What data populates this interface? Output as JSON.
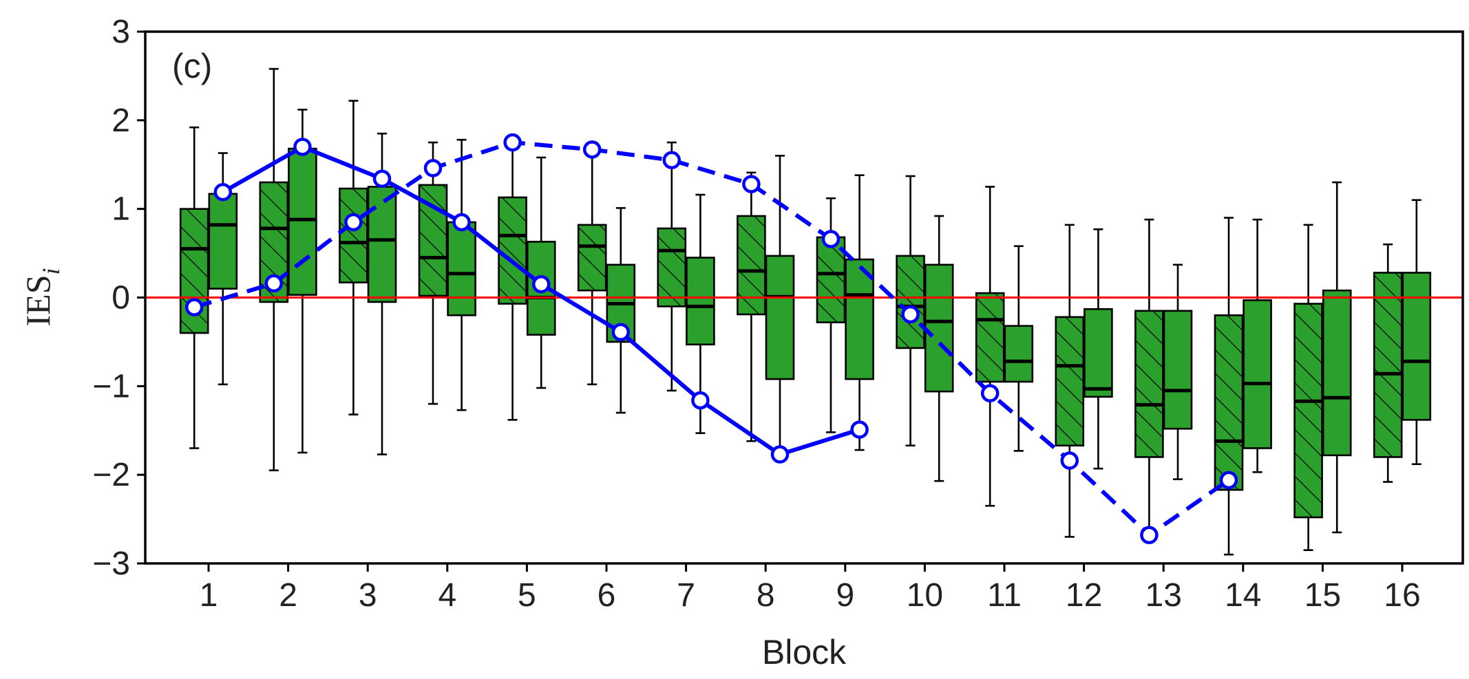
{
  "chart_data": {
    "type": "box",
    "panel_label": "(c)",
    "xlabel": "Block",
    "ylabel": "IES",
    "ylabel_subscript": "i",
    "ylim": [
      -3,
      3
    ],
    "yticks": [
      3,
      2,
      1,
      0,
      -1,
      -2,
      -3
    ],
    "ytick_labels": [
      "3",
      "2",
      "1",
      "0",
      "−1",
      "−2",
      "−3"
    ],
    "categories": [
      "1",
      "2",
      "3",
      "4",
      "5",
      "6",
      "7",
      "8",
      "9",
      "10",
      "11",
      "12",
      "13",
      "14",
      "15",
      "16"
    ],
    "reference_line": {
      "y": 0,
      "color": "#ff0000"
    },
    "colors": {
      "box_fill": "#2ca02c",
      "box_edge": "#000000",
      "points": "#0000ff"
    },
    "box_groups": [
      {
        "name": "hatched",
        "hatch": true,
        "offset": -0.18,
        "boxes": [
          {
            "whislo": -1.7,
            "q1": -0.4,
            "med": 0.55,
            "q3": 1.0,
            "whishi": 1.92
          },
          {
            "whislo": -1.95,
            "q1": -0.05,
            "med": 0.78,
            "q3": 1.3,
            "whishi": 2.58
          },
          {
            "whislo": -1.32,
            "q1": 0.17,
            "med": 0.62,
            "q3": 1.23,
            "whishi": 2.22
          },
          {
            "whislo": -1.2,
            "q1": 0.02,
            "med": 0.45,
            "q3": 1.27,
            "whishi": 1.75
          },
          {
            "whislo": -1.38,
            "q1": -0.07,
            "med": 0.7,
            "q3": 1.13,
            "whishi": 1.75
          },
          {
            "whislo": -0.98,
            "q1": 0.08,
            "med": 0.58,
            "q3": 0.82,
            "whishi": 1.72
          },
          {
            "whislo": -1.05,
            "q1": -0.1,
            "med": 0.53,
            "q3": 0.78,
            "whishi": 1.75
          },
          {
            "whislo": -1.62,
            "q1": -0.19,
            "med": 0.3,
            "q3": 0.92,
            "whishi": 1.41
          },
          {
            "whislo": -1.52,
            "q1": -0.28,
            "med": 0.27,
            "q3": 0.68,
            "whishi": 1.12
          },
          {
            "whislo": -1.67,
            "q1": -0.57,
            "med": -0.1,
            "q3": 0.47,
            "whishi": 1.37
          },
          {
            "whislo": -2.35,
            "q1": -0.95,
            "med": -0.25,
            "q3": 0.05,
            "whishi": 1.25
          },
          {
            "whislo": -2.7,
            "q1": -1.67,
            "med": -0.77,
            "q3": -0.22,
            "whishi": 0.82
          },
          {
            "whislo": -2.6,
            "q1": -1.8,
            "med": -1.21,
            "q3": -0.15,
            "whishi": 0.88
          },
          {
            "whislo": -2.9,
            "q1": -2.17,
            "med": -1.62,
            "q3": -0.2,
            "whishi": 0.9
          },
          {
            "whislo": -2.85,
            "q1": -2.48,
            "med": -1.17,
            "q3": -0.07,
            "whishi": 0.82
          },
          {
            "whislo": -2.08,
            "q1": -1.8,
            "med": -0.86,
            "q3": 0.28,
            "whishi": 0.6
          }
        ]
      },
      {
        "name": "plain",
        "hatch": false,
        "offset": 0.18,
        "boxes": [
          {
            "whislo": -0.98,
            "q1": 0.1,
            "med": 0.82,
            "q3": 1.17,
            "whishi": 1.63
          },
          {
            "whislo": -1.75,
            "q1": 0.03,
            "med": 0.88,
            "q3": 1.68,
            "whishi": 2.12
          },
          {
            "whislo": -1.77,
            "q1": -0.05,
            "med": 0.65,
            "q3": 1.25,
            "whishi": 1.85
          },
          {
            "whislo": -1.27,
            "q1": -0.2,
            "med": 0.27,
            "q3": 0.85,
            "whishi": 1.78
          },
          {
            "whislo": -1.02,
            "q1": -0.42,
            "med": 0.0,
            "q3": 0.63,
            "whishi": 1.58
          },
          {
            "whislo": -1.3,
            "q1": -0.5,
            "med": -0.07,
            "q3": 0.37,
            "whishi": 1.01
          },
          {
            "whislo": -1.53,
            "q1": -0.53,
            "med": -0.1,
            "q3": 0.45,
            "whishi": 1.16
          },
          {
            "whislo": -1.78,
            "q1": -0.92,
            "med": 0.01,
            "q3": 0.47,
            "whishi": 1.6
          },
          {
            "whislo": -1.72,
            "q1": -0.92,
            "med": 0.03,
            "q3": 0.43,
            "whishi": 1.38
          },
          {
            "whislo": -2.07,
            "q1": -1.06,
            "med": -0.27,
            "q3": 0.37,
            "whishi": 0.92
          },
          {
            "whislo": -1.73,
            "q1": -0.95,
            "med": -0.72,
            "q3": -0.32,
            "whishi": 0.58
          },
          {
            "whislo": -1.93,
            "q1": -1.12,
            "med": -1.03,
            "q3": -0.13,
            "whishi": 0.77
          },
          {
            "whislo": -2.05,
            "q1": -1.48,
            "med": -1.05,
            "q3": -0.15,
            "whishi": 0.37
          },
          {
            "whislo": -1.97,
            "q1": -1.7,
            "med": -0.97,
            "q3": -0.03,
            "whishi": 0.88
          },
          {
            "whislo": -2.65,
            "q1": -1.78,
            "med": -1.13,
            "q3": 0.08,
            "whishi": 1.3
          },
          {
            "whislo": -1.88,
            "q1": -1.38,
            "med": -0.72,
            "q3": 0.28,
            "whishi": 1.1
          }
        ]
      }
    ],
    "series": [
      {
        "style": "solid",
        "x": [
          1.18,
          2.18,
          3.18,
          4.18,
          5.18,
          6.18,
          7.18,
          8.18,
          9.18
        ],
        "y": [
          1.19,
          1.7,
          1.34,
          0.85,
          0.15,
          -0.39,
          -1.16,
          -1.77,
          -1.49
        ]
      },
      {
        "style": "dashed",
        "x": [
          0.82,
          1.82,
          2.82,
          3.82,
          4.82,
          5.82,
          6.82,
          7.82,
          8.82,
          9.82,
          10.82,
          11.82,
          12.82,
          13.82
        ],
        "y": [
          -0.11,
          0.16,
          0.85,
          1.46,
          1.75,
          1.67,
          1.55,
          1.28,
          0.66,
          -0.19,
          -1.08,
          -1.84,
          -2.68,
          -2.06
        ]
      }
    ]
  }
}
